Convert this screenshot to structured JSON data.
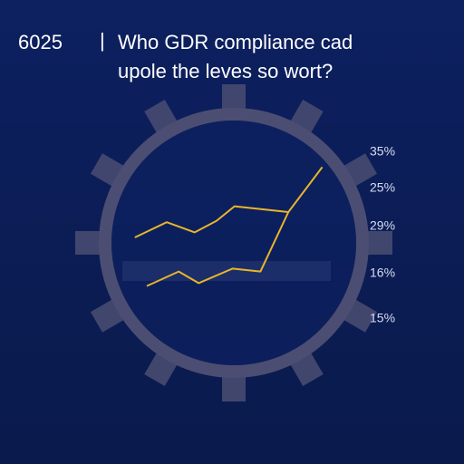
{
  "chart_data": {
    "type": "line",
    "number": "6025",
    "separator": "|",
    "title": "Who GDR compliance cad",
    "subtitle": "upole the leves so wort?",
    "labels": [
      "35%",
      "25%",
      "29%",
      "16%",
      "15%"
    ],
    "x": [
      0.4,
      2.0,
      3.4,
      4.5,
      5.4,
      8.1
    ],
    "xlim": [
      0,
      10
    ],
    "ylim": [
      0,
      10
    ],
    "series": [
      {
        "color": "#e8b52a",
        "x": [
          0.4,
          2.0,
          3.4,
          4.5,
          5.4,
          8.1
        ],
        "values": [
          4.25,
          5.3,
          4.6,
          5.4,
          6.4,
          6.0
        ]
      },
      {
        "color": "#e8b52a",
        "x": [
          1.0,
          2.6,
          3.6,
          5.3,
          6.7,
          8.1,
          9.8
        ],
        "values": [
          0.9,
          1.9,
          1.1,
          2.1,
          1.9,
          6.0,
          9.1
        ]
      }
    ]
  }
}
